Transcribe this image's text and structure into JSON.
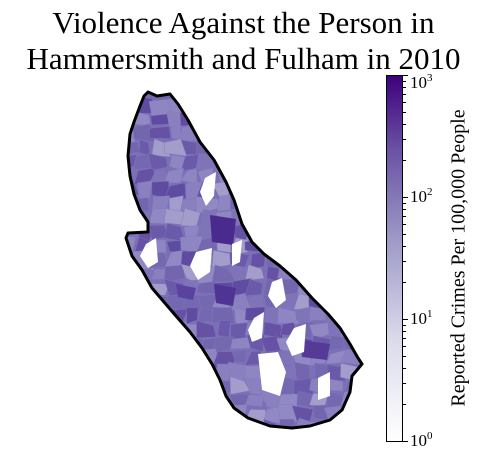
{
  "title_lines": [
    "Violence Against the Person in",
    "Hammersmith and Fulham in 2010"
  ],
  "colorbar": {
    "label": "Reported Crimes Per 100,000 People",
    "scale": "log",
    "range": [
      1,
      1000
    ],
    "ticks": [
      {
        "base": "10",
        "exp": "0",
        "value": 1
      },
      {
        "base": "10",
        "exp": "1",
        "value": 10
      },
      {
        "base": "10",
        "exp": "2",
        "value": 100
      },
      {
        "base": "10",
        "exp": "3",
        "value": 1000
      }
    ],
    "colors": [
      "#ffffff",
      "#dadaeb",
      "#9e9ac8",
      "#6a51a3",
      "#3f007d"
    ]
  },
  "map": {
    "borough": "Hammersmith and Fulham",
    "outline_color": "#000000",
    "no_data_color": "#ffffff"
  }
}
